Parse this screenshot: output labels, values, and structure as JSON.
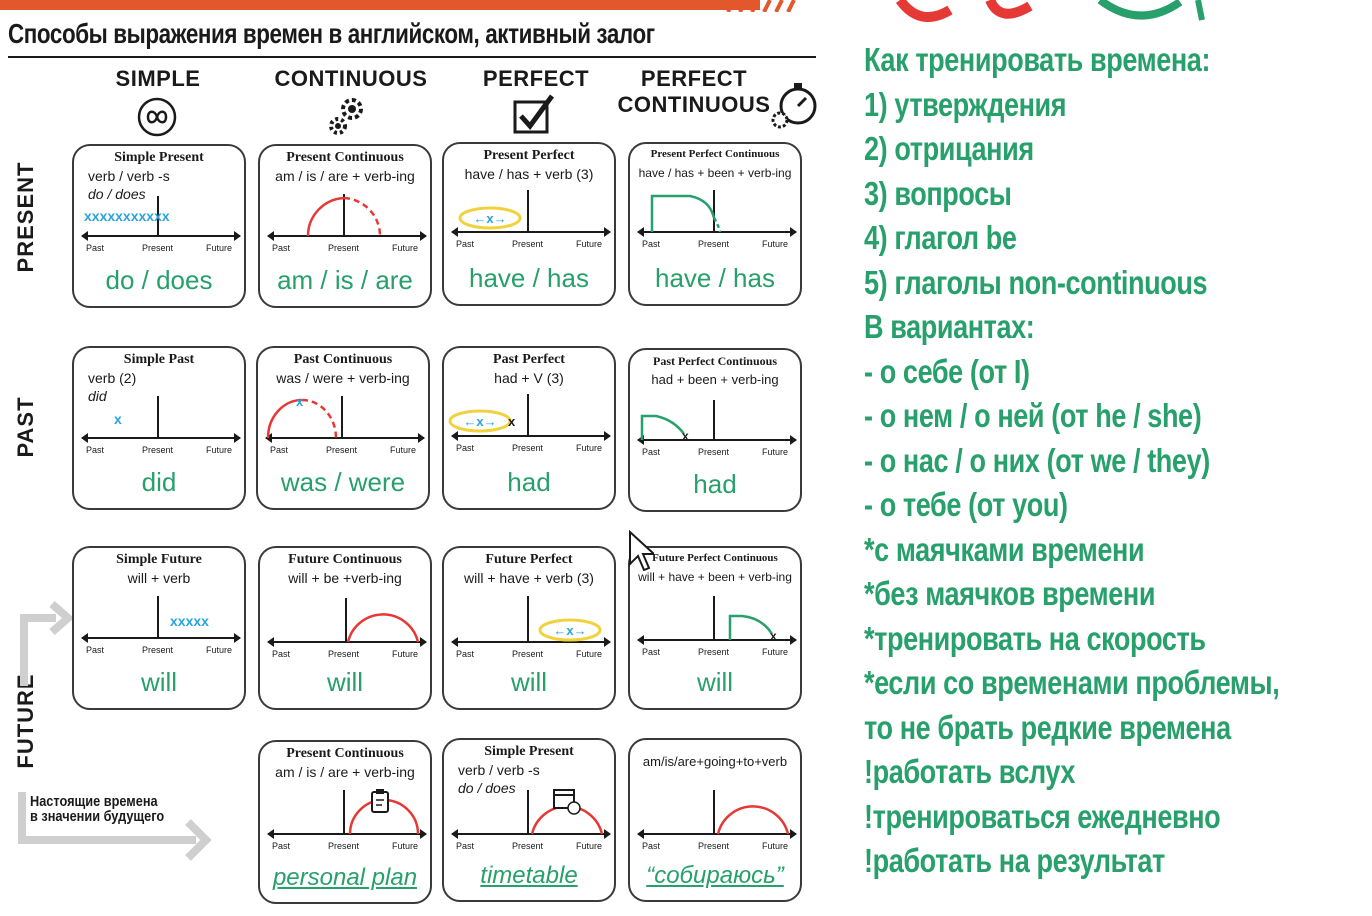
{
  "title": "Способы выражения времен в английском, активный залог",
  "columns": [
    {
      "label": "SIMPLE",
      "icon": "infinity-icon"
    },
    {
      "label": "CONTINUOUS",
      "icon": "gears-icon"
    },
    {
      "label": "PERFECT",
      "icon": "checkbox-icon"
    },
    {
      "label": "PERFECT\nCONTINUOUS",
      "icon": "stopwatch-gears-icon"
    }
  ],
  "rows": [
    "PRESENT",
    "PAST",
    "FUTURE"
  ],
  "timeline_labels": {
    "past": "Past",
    "present": "Present",
    "future": "Future"
  },
  "cards": {
    "present_simple": {
      "title": "Simple Present",
      "formula": "verb / verb -s",
      "aux": "do / does",
      "marks": "xxxxxxxxxxx",
      "answer": "do / does"
    },
    "present_continuous": {
      "title": "Present Continuous",
      "formula": "am / is / are + verb-ing",
      "answer": "am / is / are"
    },
    "present_perfect": {
      "title": "Present Perfect",
      "formula": "have / has + verb (3)",
      "oval": "←x→",
      "answer": "have / has"
    },
    "present_perfect_continuous": {
      "title": "Present Perfect Continuous",
      "formula": "have / has + been + verb-ing",
      "answer": "have / has"
    },
    "past_simple": {
      "title": "Simple Past",
      "formula": "verb (2)",
      "aux": "did",
      "marks": "x",
      "answer": "did"
    },
    "past_continuous": {
      "title": "Past Continuous",
      "formula": "was / were + verb-ing",
      "answer": "was / were"
    },
    "past_perfect": {
      "title": "Past Perfect",
      "formula": "had + V (3)",
      "oval": "←x→",
      "mark": "x",
      "answer": "had"
    },
    "past_perfect_continuous": {
      "title": "Past Perfect Continuous",
      "formula": "had + been + verb-ing",
      "mark": "x",
      "answer": "had"
    },
    "future_simple": {
      "title": "Simple Future",
      "formula": "will + verb",
      "marks": "xxxxx",
      "answer": "will"
    },
    "future_continuous": {
      "title": "Future Continuous",
      "formula": "will + be +verb-ing",
      "answer": "will"
    },
    "future_perfect": {
      "title": "Future Perfect",
      "formula": "will + have + verb (3)",
      "oval": "←x→",
      "answer": "will"
    },
    "future_perfect_continuous": {
      "title": "Future Perfect Continuous",
      "formula": "will + have + been + verb-ing",
      "mark": "x",
      "answer": "will"
    },
    "plan_continuous": {
      "title": "Present Continuous",
      "formula": "am / is / are + verb-ing",
      "icon": "clipboard-icon",
      "answer": "personal plan"
    },
    "timetable_simple": {
      "title": "Simple Present",
      "formula": "verb / verb -s",
      "aux": "do / does",
      "icon": "calendar-clock-icon",
      "answer": "timetable"
    },
    "going_to": {
      "title": "",
      "formula": "am/is/are+going+to+verb",
      "answer": "“собираюсь”"
    }
  },
  "future_note": "Настоящие времена\nв значении будущего",
  "right_list": [
    "Как тренировать времена:",
    "1) утверждения",
    "2) отрицания",
    "3) вопросы",
    "4) глагол be",
    "5) глаголы non-continuous",
    "В вариантах:",
    "- о себе (от I)",
    "- о нем / о ней (от he / she)",
    "- о нас / о них (от we / they)",
    "- о тебе (от you)",
    "*с маячками времени",
    "*без маячков времени",
    "*тренировать на скорость",
    "*если со временами проблемы,",
    "то  не брать редкие времена",
    "!работать вслух",
    "!тренироваться ежедневно",
    "!работать на результат"
  ],
  "colors": {
    "accent_green": "#27a06b",
    "red": "#e53935",
    "blue": "#29a3e0",
    "oval_yellow": "#f2d23c",
    "bar_orange": "#e2572b"
  }
}
